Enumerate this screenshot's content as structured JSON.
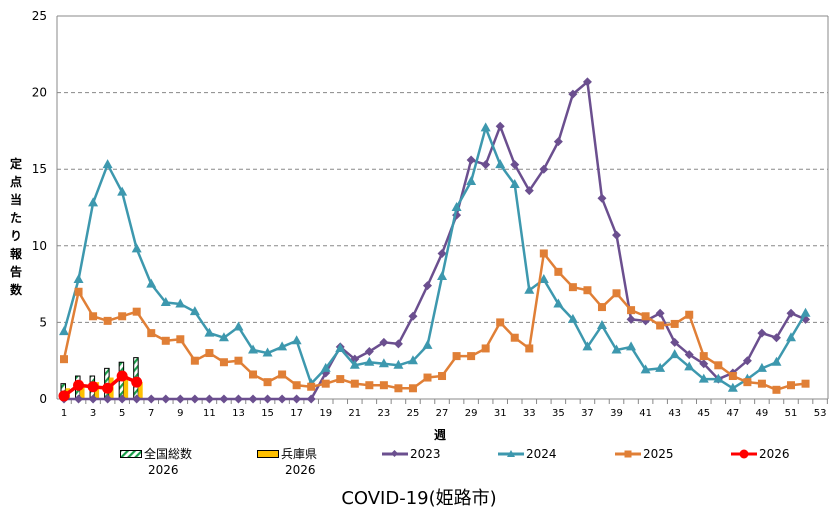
{
  "chart_data": {
    "type": "line",
    "title": "COVID-19(姫路市)",
    "xlabel": "週",
    "ylabel": "定点当たり報告数",
    "xlim": [
      1,
      53
    ],
    "ylim": [
      0,
      25
    ],
    "yticks": [
      0,
      5,
      10,
      15,
      20,
      25
    ],
    "xticks": [
      1,
      3,
      5,
      7,
      9,
      11,
      13,
      15,
      17,
      19,
      21,
      23,
      25,
      27,
      29,
      31,
      33,
      35,
      37,
      39,
      41,
      43,
      45,
      47,
      49,
      51,
      53
    ],
    "grid": "horizontal dashed",
    "legend_position": "bottom",
    "bars": [
      {
        "name": "全国総数",
        "year": "2026",
        "color": "#1a9e4a",
        "pattern": "hatched",
        "weeks": [
          1,
          2,
          3,
          4,
          5,
          6
        ],
        "values": [
          1.0,
          1.5,
          1.5,
          2.0,
          2.4,
          2.7
        ]
      },
      {
        "name": "兵庫県",
        "year": "2026",
        "color": "#ffc000",
        "weeks": [
          1,
          2,
          3,
          4,
          5,
          6
        ],
        "values": [
          0.7,
          0.9,
          1.1,
          1.4,
          1.5,
          1.1
        ]
      }
    ],
    "series": [
      {
        "name": "2023",
        "color": "#6b4f8f",
        "marker": "diamond",
        "values": [
          0,
          0,
          0,
          0,
          0,
          0,
          0,
          0,
          0,
          0,
          0,
          0,
          0,
          0,
          0,
          0,
          0,
          0,
          1.7,
          3.4,
          2.6,
          3.1,
          3.7,
          3.6,
          5.4,
          7.4,
          9.5,
          12.0,
          15.6,
          15.3,
          17.8,
          15.3,
          13.6,
          15.0,
          16.8,
          19.9,
          20.7,
          13.1,
          10.7,
          5.2,
          5.1,
          5.6,
          3.7,
          2.9,
          2.3,
          1.3,
          1.7,
          2.5,
          4.3,
          4.0,
          5.6,
          5.2
        ]
      },
      {
        "name": "2024",
        "color": "#3d98ae",
        "marker": "triangle",
        "values": [
          4.4,
          7.8,
          12.8,
          15.3,
          13.5,
          9.8,
          7.5,
          6.3,
          6.2,
          5.7,
          4.3,
          4.0,
          4.7,
          3.2,
          3.0,
          3.4,
          3.8,
          1.0,
          2.0,
          3.3,
          2.2,
          2.4,
          2.3,
          2.2,
          2.5,
          3.5,
          8.0,
          12.5,
          14.2,
          17.7,
          15.3,
          14.0,
          7.1,
          7.8,
          6.2,
          5.2,
          3.4,
          4.8,
          3.2,
          3.4,
          1.9,
          2.0,
          2.9,
          2.1,
          1.3,
          1.3,
          0.7,
          1.3,
          2.0,
          2.4,
          4.0,
          5.6
        ]
      },
      {
        "name": "2025",
        "color": "#e07f36",
        "marker": "square",
        "values": [
          2.6,
          7.0,
          5.4,
          5.1,
          5.4,
          5.7,
          4.3,
          3.8,
          3.9,
          2.5,
          3.0,
          2.4,
          2.5,
          1.6,
          1.1,
          1.6,
          0.9,
          0.8,
          1.0,
          1.3,
          1.0,
          0.9,
          0.9,
          0.7,
          0.7,
          1.4,
          1.5,
          2.8,
          2.8,
          3.3,
          5.0,
          4.0,
          3.3,
          9.5,
          8.3,
          7.3,
          7.1,
          6.0,
          6.9,
          5.8,
          5.4,
          4.8,
          4.9,
          5.5,
          2.8,
          2.2,
          1.5,
          1.1,
          1.0,
          0.6,
          0.9,
          1.0
        ]
      },
      {
        "name": "2026",
        "color": "#ff0000",
        "marker": "circle",
        "values": [
          0.2,
          0.9,
          0.8,
          0.7,
          1.5,
          1.1
        ]
      }
    ]
  }
}
